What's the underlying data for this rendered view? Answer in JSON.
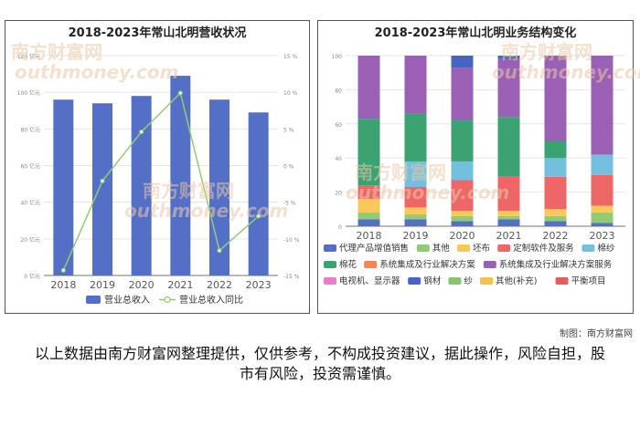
{
  "chart_data": [
    {
      "type": "bar",
      "title": "2018-2023年常山北明营收状况",
      "categories": [
        "2018",
        "2019",
        "2020",
        "2021",
        "2022",
        "2023"
      ],
      "series": [
        {
          "name": "营业总收入",
          "type": "bar",
          "axis": "left",
          "values": [
            96,
            94,
            98,
            109,
            96,
            89
          ],
          "color": "#5470c6"
        },
        {
          "name": "营业总收入同比",
          "type": "line",
          "axis": "right",
          "values": [
            -14.3,
            -2.1,
            4.6,
            9.9,
            -11.6,
            -6.9
          ],
          "color": "#91cc75"
        }
      ],
      "y_left": {
        "min": 0,
        "max": 120,
        "ticks": [
          "0 亿元",
          "20 亿元",
          "40 亿元",
          "60 亿元",
          "80 亿元",
          "100 亿元",
          "120 亿元"
        ]
      },
      "y_right": {
        "min": -15,
        "max": 15,
        "ticks": [
          "-15 %",
          "-10 %",
          "-5 %",
          "0 %",
          "5 %",
          "10 %",
          "15 %"
        ]
      },
      "legend_position": "bottom"
    },
    {
      "type": "bar",
      "stacked": true,
      "title": "2018-2023年常山北明业务结构变化",
      "categories": [
        "2018",
        "2019",
        "2020",
        "2021",
        "2022",
        "2023"
      ],
      "y_ticks": [
        "0",
        "20",
        "40",
        "60",
        "80",
        "100"
      ],
      "ylim": [
        0,
        100
      ],
      "series": [
        {
          "name": "代理产品增值销售",
          "color": "#5470c6",
          "values": [
            4,
            4,
            3,
            4,
            3,
            2
          ]
        },
        {
          "name": "其他",
          "color": "#91cc75",
          "values": [
            4,
            3,
            3,
            2,
            3,
            6
          ]
        },
        {
          "name": "坯布",
          "color": "#fac858",
          "values": [
            8,
            4,
            3,
            3,
            4,
            4
          ]
        },
        {
          "name": "定制软件及服务",
          "color": "#ee6666",
          "values": [
            8,
            12,
            18,
            20,
            19,
            18
          ]
        },
        {
          "name": "棉纱",
          "color": "#73c0de",
          "values": [
            0,
            15,
            11,
            0,
            11,
            12
          ]
        },
        {
          "name": "棉花",
          "color": "#3ba272",
          "values": [
            39,
            28,
            24,
            35,
            10,
            0
          ]
        },
        {
          "name": "系统集成及行业解决方案",
          "color": "#fc8452",
          "values": [
            0,
            0,
            0,
            0,
            0,
            0
          ]
        },
        {
          "name": "系统集成及行业解决方案服务",
          "color": "#9a60b4",
          "values": [
            37,
            34,
            31,
            34,
            50,
            58
          ]
        },
        {
          "name": "电视机、显示器",
          "color": "#ea7ccc",
          "values": [
            0,
            0,
            0,
            0,
            0,
            0
          ]
        },
        {
          "name": "钢材",
          "color": "#4764c4",
          "values": [
            0,
            0,
            7,
            2,
            0,
            0
          ]
        },
        {
          "name": "纱",
          "color": "#86c56e",
          "values": [
            0,
            0,
            0,
            0,
            0,
            0
          ]
        },
        {
          "name": "其他(补充)",
          "color": "#f2c14e",
          "values": [
            0,
            0,
            0,
            0,
            0,
            0
          ]
        },
        {
          "name": "平衡项目",
          "color": "#e35d5d",
          "values": [
            0,
            0,
            0,
            0,
            0,
            0
          ]
        }
      ],
      "legend_position": "bottom"
    }
  ],
  "watermark": {
    "cn": "南方财富网",
    "en": "outhmoney.com"
  },
  "credit": "制图：南方财富网",
  "disclaimer": "以上数据由南方财富网整理提供，仅供参考，不构成投资建议，据此操作，风险自担，股市有风险，投资需谨慎。"
}
